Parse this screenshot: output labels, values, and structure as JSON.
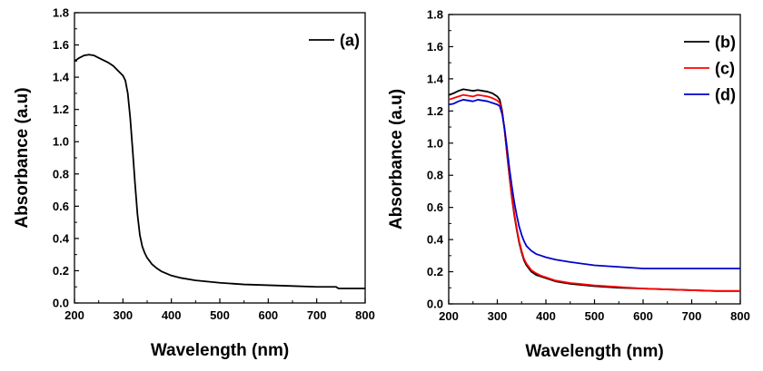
{
  "chart_data": [
    {
      "type": "line",
      "xlabel": "Wavelength (nm)",
      "ylabel": "Absorbance (a.u)",
      "xlim": [
        200,
        800
      ],
      "ylim": [
        0.0,
        1.8
      ],
      "xticks": [
        "200",
        "300",
        "400",
        "500",
        "600",
        "700",
        "800"
      ],
      "yticks": [
        "0.0",
        "0.2",
        "0.4",
        "0.6",
        "0.8",
        "1.0",
        "1.2",
        "1.4",
        "1.6",
        "1.8"
      ],
      "grid": false,
      "legend": "top-right",
      "series": [
        {
          "name": "(a)",
          "color": "#000000",
          "x": [
            200,
            210,
            220,
            230,
            240,
            250,
            260,
            270,
            280,
            290,
            300,
            305,
            310,
            315,
            320,
            325,
            330,
            335,
            340,
            345,
            350,
            360,
            370,
            380,
            400,
            420,
            450,
            500,
            550,
            600,
            650,
            700,
            740,
            745,
            750,
            800
          ],
          "y": [
            1.5,
            1.52,
            1.535,
            1.54,
            1.535,
            1.52,
            1.505,
            1.49,
            1.47,
            1.44,
            1.41,
            1.38,
            1.3,
            1.15,
            0.95,
            0.74,
            0.55,
            0.42,
            0.35,
            0.31,
            0.28,
            0.24,
            0.215,
            0.195,
            0.17,
            0.155,
            0.14,
            0.125,
            0.115,
            0.11,
            0.105,
            0.1,
            0.1,
            0.09,
            0.09,
            0.09
          ]
        }
      ]
    },
    {
      "type": "line",
      "xlabel": "Wavelength (nm)",
      "ylabel": "Absorbance (a.u)",
      "xlim": [
        200,
        800
      ],
      "ylim": [
        0.0,
        1.8
      ],
      "xticks": [
        "200",
        "300",
        "400",
        "500",
        "600",
        "700",
        "800"
      ],
      "yticks": [
        "0.0",
        "0.2",
        "0.4",
        "0.6",
        "0.8",
        "1.0",
        "1.2",
        "1.4",
        "1.6",
        "1.8"
      ],
      "grid": false,
      "legend": "top-right",
      "series": [
        {
          "name": "(b)",
          "color": "#000000",
          "x": [
            200,
            210,
            220,
            230,
            240,
            250,
            260,
            270,
            280,
            290,
            300,
            305,
            310,
            315,
            320,
            325,
            330,
            335,
            340,
            345,
            350,
            355,
            360,
            370,
            380,
            390,
            400,
            420,
            450,
            500,
            550,
            600,
            650,
            700,
            750,
            800
          ],
          "y": [
            1.3,
            1.31,
            1.325,
            1.335,
            1.33,
            1.325,
            1.33,
            1.325,
            1.32,
            1.31,
            1.29,
            1.27,
            1.2,
            1.08,
            0.93,
            0.79,
            0.66,
            0.55,
            0.46,
            0.38,
            0.32,
            0.27,
            0.24,
            0.2,
            0.18,
            0.17,
            0.16,
            0.14,
            0.125,
            0.11,
            0.1,
            0.095,
            0.09,
            0.085,
            0.08,
            0.08
          ]
        },
        {
          "name": "(c)",
          "color": "#ff0000",
          "x": [
            200,
            210,
            220,
            230,
            240,
            250,
            260,
            270,
            280,
            290,
            300,
            305,
            310,
            315,
            320,
            325,
            330,
            335,
            340,
            345,
            350,
            355,
            360,
            370,
            380,
            390,
            400,
            420,
            450,
            500,
            550,
            600,
            650,
            700,
            750,
            800
          ],
          "y": [
            1.27,
            1.28,
            1.29,
            1.3,
            1.295,
            1.29,
            1.3,
            1.295,
            1.29,
            1.28,
            1.265,
            1.25,
            1.19,
            1.08,
            0.94,
            0.8,
            0.67,
            0.56,
            0.47,
            0.39,
            0.33,
            0.28,
            0.25,
            0.21,
            0.19,
            0.175,
            0.165,
            0.145,
            0.13,
            0.115,
            0.105,
            0.095,
            0.09,
            0.085,
            0.08,
            0.08
          ]
        },
        {
          "name": "(d)",
          "color": "#0000cc",
          "x": [
            200,
            210,
            220,
            230,
            240,
            250,
            260,
            270,
            280,
            290,
            300,
            305,
            310,
            315,
            320,
            325,
            330,
            335,
            340,
            345,
            350,
            355,
            360,
            370,
            380,
            390,
            400,
            420,
            450,
            500,
            550,
            600,
            650,
            700,
            750,
            800
          ],
          "y": [
            1.24,
            1.245,
            1.26,
            1.27,
            1.265,
            1.26,
            1.27,
            1.265,
            1.26,
            1.25,
            1.24,
            1.23,
            1.18,
            1.09,
            0.97,
            0.84,
            0.73,
            0.63,
            0.55,
            0.48,
            0.43,
            0.39,
            0.36,
            0.33,
            0.31,
            0.3,
            0.29,
            0.275,
            0.26,
            0.24,
            0.23,
            0.22,
            0.22,
            0.22,
            0.22,
            0.22
          ]
        }
      ]
    }
  ],
  "colors": {
    "axis": "#000000",
    "background": "#ffffff"
  }
}
